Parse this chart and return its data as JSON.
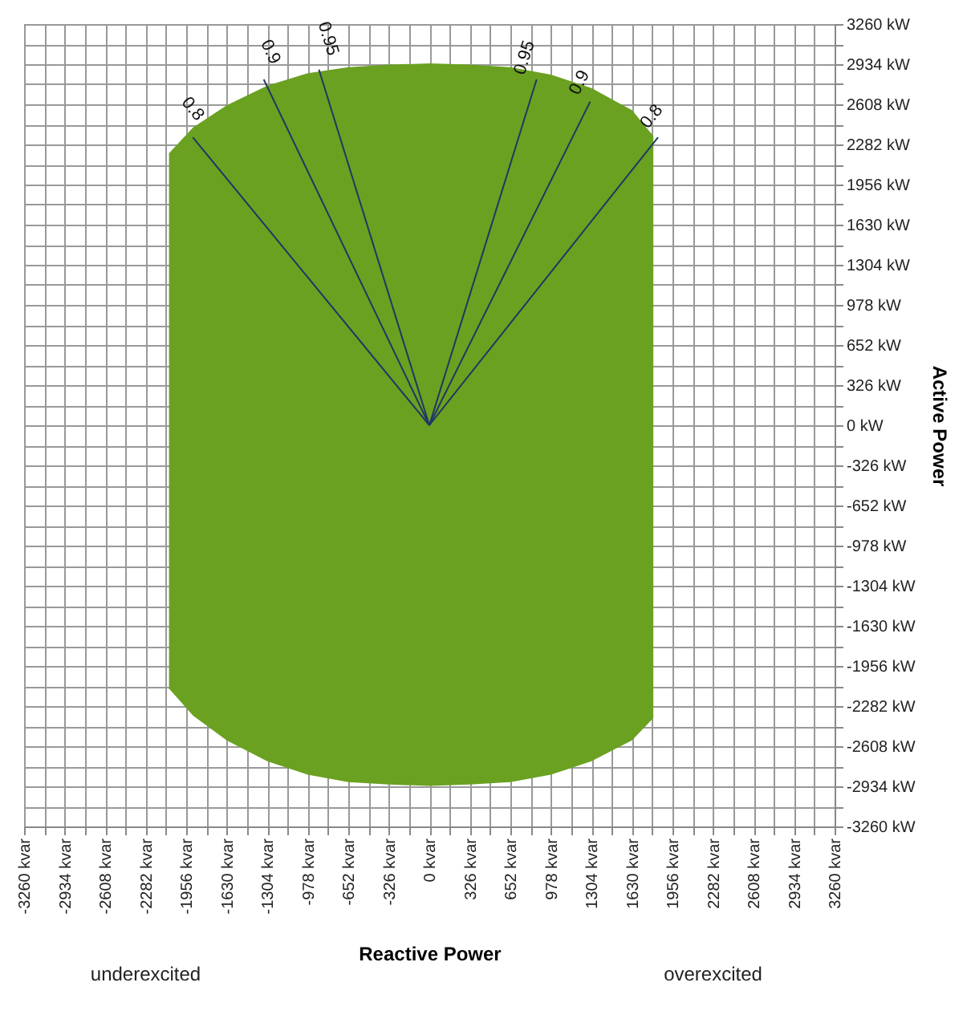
{
  "chart_data": {
    "type": "area",
    "xlabel": "Reactive Power",
    "ylabel": "Active Power",
    "annotations": [
      "underexcited",
      "overexcited"
    ],
    "x": [
      -2094,
      -1900,
      -1630,
      -1304,
      -978,
      -652,
      -326,
      0,
      326,
      652,
      978,
      1304,
      1630,
      1802
    ],
    "series": [
      {
        "color": "#6aa121",
        "values": [
          2210,
          2420,
          2600,
          2760,
          2860,
          2910,
          2930,
          2940,
          2930,
          2910,
          2850,
          2740,
          2560,
          2350
        ]
      },
      {
        "color": "#6aa121",
        "values": [
          -2140,
          -2360,
          -2560,
          -2730,
          -2840,
          -2900,
          -2920,
          -2930,
          -2920,
          -2900,
          -2840,
          -2730,
          -2560,
          -2380
        ]
      },
      {
        "type": "line",
        "name": "0.8",
        "color": "#1f3864",
        "x": [
          0,
          -1903
        ],
        "values": [
          0,
          2340
        ]
      },
      {
        "type": "line",
        "name": "0.9",
        "color": "#1f3864",
        "x": [
          0,
          -1332
        ],
        "values": [
          0,
          2810
        ]
      },
      {
        "type": "line",
        "name": "0.95",
        "color": "#1f3864",
        "x": [
          0,
          -888
        ],
        "values": [
          0,
          2890
        ]
      },
      {
        "type": "line",
        "name": "0.95",
        "color": "#1f3864",
        "x": [
          0,
          863
        ],
        "values": [
          0,
          2810
        ]
      },
      {
        "type": "line",
        "name": "0.9",
        "color": "#1f3864",
        "x": [
          0,
          1294
        ],
        "values": [
          0,
          2630
        ]
      },
      {
        "type": "line",
        "name": "0.8",
        "color": "#1f3864",
        "x": [
          0,
          1840
        ],
        "values": [
          0,
          2340
        ]
      }
    ],
    "xlim": [
      -3260,
      3260
    ],
    "ylim": [
      -3260,
      3260
    ],
    "xticks": [
      {
        "value": -3260,
        "label": "-3260 kvar"
      },
      {
        "value": -3097,
        "label": null
      },
      {
        "value": -2934,
        "label": "-2934 kvar"
      },
      {
        "value": -2771,
        "label": null
      },
      {
        "value": -2608,
        "label": "-2608 kvar"
      },
      {
        "value": -2445,
        "label": null
      },
      {
        "value": -2282,
        "label": "-2282 kvar"
      },
      {
        "value": -2119,
        "label": null
      },
      {
        "value": -1956,
        "label": "-1956 kvar"
      },
      {
        "value": -1793,
        "label": null
      },
      {
        "value": -1630,
        "label": "-1630 kvar"
      },
      {
        "value": -1467,
        "label": null
      },
      {
        "value": -1304,
        "label": "-1304 kvar"
      },
      {
        "value": -1141,
        "label": null
      },
      {
        "value": -978,
        "label": "-978 kvar"
      },
      {
        "value": -815,
        "label": null
      },
      {
        "value": -652,
        "label": "-652 kvar"
      },
      {
        "value": -489,
        "label": null
      },
      {
        "value": -326,
        "label": "-326 kvar"
      },
      {
        "value": -163,
        "label": null
      },
      {
        "value": 0,
        "label": "0 kvar"
      },
      {
        "value": 163,
        "label": null
      },
      {
        "value": 326,
        "label": "326 kvar"
      },
      {
        "value": 489,
        "label": null
      },
      {
        "value": 652,
        "label": "652 kvar"
      },
      {
        "value": 815,
        "label": null
      },
      {
        "value": 978,
        "label": "978 kvar"
      },
      {
        "value": 1141,
        "label": null
      },
      {
        "value": 1304,
        "label": "1304 kvar"
      },
      {
        "value": 1467,
        "label": null
      },
      {
        "value": 1630,
        "label": "1630 kvar"
      },
      {
        "value": 1793,
        "label": null
      },
      {
        "value": 1956,
        "label": "1956 kvar"
      },
      {
        "value": 2119,
        "label": null
      },
      {
        "value": 2282,
        "label": "2282 kvar"
      },
      {
        "value": 2445,
        "label": null
      },
      {
        "value": 2608,
        "label": "2608 kvar"
      },
      {
        "value": 2771,
        "label": null
      },
      {
        "value": 2934,
        "label": "2934 kvar"
      },
      {
        "value": 3097,
        "label": null
      },
      {
        "value": 3260,
        "label": "3260 kvar"
      }
    ],
    "yticks": [
      {
        "value": -3260,
        "label": "-3260 kW"
      },
      {
        "value": -3097,
        "label": null
      },
      {
        "value": -2934,
        "label": "-2934 kW"
      },
      {
        "value": -2771,
        "label": null
      },
      {
        "value": -2608,
        "label": "-2608 kW"
      },
      {
        "value": -2445,
        "label": null
      },
      {
        "value": -2282,
        "label": "-2282 kW"
      },
      {
        "value": -2119,
        "label": null
      },
      {
        "value": -1956,
        "label": "-1956 kW"
      },
      {
        "value": -1793,
        "label": null
      },
      {
        "value": -1630,
        "label": "-1630 kW"
      },
      {
        "value": -1467,
        "label": null
      },
      {
        "value": -1304,
        "label": "-1304 kW"
      },
      {
        "value": -1141,
        "label": null
      },
      {
        "value": -978,
        "label": "-978 kW"
      },
      {
        "value": -815,
        "label": null
      },
      {
        "value": -652,
        "label": "-652 kW"
      },
      {
        "value": -489,
        "label": null
      },
      {
        "value": -326,
        "label": "-326 kW"
      },
      {
        "value": -163,
        "label": null
      },
      {
        "value": 0,
        "label": "0 kW"
      },
      {
        "value": 163,
        "label": null
      },
      {
        "value": 326,
        "label": "326 kW"
      },
      {
        "value": 489,
        "label": null
      },
      {
        "value": 652,
        "label": "652 kW"
      },
      {
        "value": 815,
        "label": null
      },
      {
        "value": 978,
        "label": "978 kW"
      },
      {
        "value": 1141,
        "label": null
      },
      {
        "value": 1304,
        "label": "1304 kW"
      },
      {
        "value": 1467,
        "label": null
      },
      {
        "value": 1630,
        "label": "1630 kW"
      },
      {
        "value": 1793,
        "label": null
      },
      {
        "value": 1956,
        "label": "1956 kW"
      },
      {
        "value": 2119,
        "label": null
      },
      {
        "value": 2282,
        "label": "2282 kW"
      },
      {
        "value": 2445,
        "label": null
      },
      {
        "value": 2608,
        "label": "2608 kW"
      },
      {
        "value": 2771,
        "label": null
      },
      {
        "value": 2934,
        "label": "2934 kW"
      },
      {
        "value": 3097,
        "label": null
      },
      {
        "value": 3260,
        "label": "3260 kW"
      }
    ],
    "grid": true
  }
}
